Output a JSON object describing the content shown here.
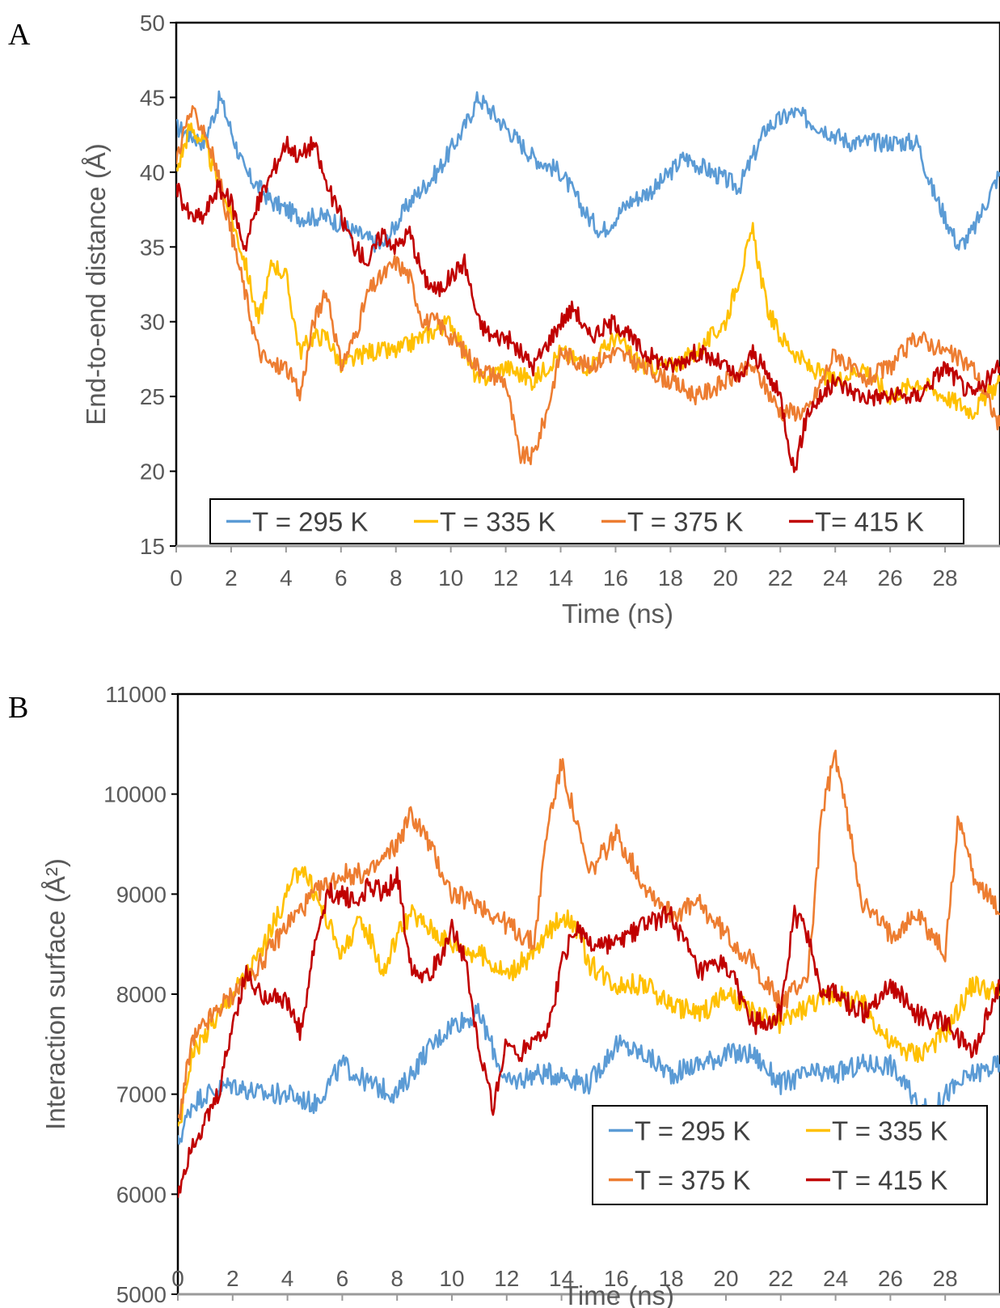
{
  "chart_data": [
    {
      "panel_label": "A",
      "type": "line",
      "xlabel": "Time (ns)",
      "ylabel": "End-to-end distance (Å)",
      "xlim": [
        0,
        30
      ],
      "ylim": [
        15,
        50
      ],
      "x_ticks": [
        "0",
        "2",
        "4",
        "6",
        "8",
        "10",
        "12",
        "14",
        "16",
        "18",
        "20",
        "22",
        "24",
        "26",
        "28"
      ],
      "y_ticks": [
        "15",
        "20",
        "25",
        "30",
        "35",
        "40",
        "45",
        "50"
      ],
      "legend_position": "bottom",
      "series": [
        {
          "name": "T = 295 K",
          "color": "#5B9BD5",
          "x": [
            0,
            1,
            1.6,
            2.5,
            3.5,
            4.5,
            5.5,
            6.5,
            7.5,
            8.5,
            9.5,
            10.5,
            11,
            12,
            13,
            14,
            15,
            15.5,
            16.5,
            17.5,
            18.5,
            19.5,
            20.5,
            21.5,
            22.5,
            23.5,
            24.5,
            25.5,
            26.5,
            27,
            27.5,
            28,
            28.5,
            29,
            29.5,
            30
          ],
          "y": [
            43,
            42,
            45,
            40,
            38,
            37,
            37,
            36,
            35,
            38,
            40,
            43,
            45,
            43,
            41,
            40,
            37,
            36,
            38,
            39,
            41,
            40,
            39,
            43,
            44,
            43,
            42,
            42,
            42,
            42,
            39,
            37,
            35,
            36,
            38,
            40
          ]
        },
        {
          "name": "T = 335 K",
          "color": "#FFC000",
          "x": [
            0,
            0.5,
            1,
            2,
            2.5,
            3,
            3.5,
            4,
            4.5,
            5,
            5.5,
            6,
            7,
            8,
            9,
            10,
            11,
            12,
            13,
            14,
            15,
            16,
            17,
            18,
            19,
            20,
            20.5,
            21,
            21.5,
            22,
            23,
            24,
            25,
            26,
            27,
            28,
            29,
            30
          ],
          "y": [
            40,
            43,
            42,
            37,
            34,
            30,
            34,
            33,
            28,
            29,
            29,
            27,
            28,
            28,
            29,
            30,
            26,
            27,
            26,
            28,
            27,
            29,
            27,
            27,
            28,
            30,
            33,
            36,
            31,
            29,
            27,
            26,
            27,
            25,
            26,
            25,
            24,
            26
          ]
        },
        {
          "name": "T = 375 K",
          "color": "#ED7D31",
          "x": [
            0,
            0.5,
            1,
            1.5,
            2,
            2.5,
            3,
            3.5,
            4,
            4.5,
            5,
            5.5,
            6,
            6.5,
            7,
            7.5,
            8,
            8.5,
            9,
            9.5,
            10,
            11,
            12,
            12.5,
            13,
            13.5,
            14,
            15,
            16,
            17,
            18,
            19,
            20,
            21,
            22,
            23,
            24,
            25,
            26,
            27,
            28,
            29,
            30
          ],
          "y": [
            41,
            44,
            43,
            40,
            36,
            32,
            28,
            27,
            27,
            25,
            30,
            32,
            27,
            29,
            32,
            33,
            34,
            33,
            30,
            30,
            29,
            27,
            26,
            21,
            21,
            24,
            28,
            27,
            28,
            27,
            26,
            25,
            26,
            27,
            24,
            24,
            28,
            26,
            27,
            29,
            28,
            27,
            23
          ]
        },
        {
          "name": "T= 415 K",
          "color": "#C00000",
          "x": [
            0,
            0.5,
            1,
            1.5,
            2,
            2.5,
            3,
            3.5,
            4,
            4.5,
            5,
            5.5,
            6,
            6.5,
            7,
            7.5,
            8,
            8.5,
            9,
            9.5,
            10,
            10.5,
            11,
            11.5,
            12,
            13,
            14,
            14.5,
            15,
            16,
            17,
            18,
            19,
            20,
            20.5,
            21,
            22,
            22.5,
            23,
            24,
            25,
            26,
            27,
            28,
            29,
            30
          ],
          "y": [
            39,
            37,
            37,
            39,
            38,
            35,
            38,
            40,
            42,
            41,
            42,
            39,
            37,
            35,
            34,
            36,
            35,
            36,
            33,
            32,
            33,
            34,
            30,
            29,
            29,
            27,
            30,
            31,
            29,
            30,
            28,
            27,
            28,
            27,
            26,
            28,
            25,
            20,
            24,
            26,
            25,
            25,
            25,
            27,
            25,
            27
          ]
        }
      ]
    },
    {
      "panel_label": "B",
      "type": "line",
      "xlabel": "Time (ns)",
      "ylabel": "Interaction surface (Å²)",
      "xlim": [
        0,
        30
      ],
      "ylim": [
        5000,
        11000
      ],
      "x_ticks": [
        "0",
        "2",
        "4",
        "6",
        "8",
        "10",
        "12",
        "14",
        "16",
        "18",
        "20",
        "22",
        "24",
        "26",
        "28"
      ],
      "y_ticks": [
        "5000",
        "6000",
        "7000",
        "8000",
        "9000",
        "10000",
        "11000"
      ],
      "legend_position": "bottom-right",
      "series": [
        {
          "name": "T = 295 K",
          "color": "#5B9BD5",
          "x": [
            0,
            0.5,
            1,
            2,
            3,
            4,
            5,
            6,
            7,
            8,
            9,
            10,
            11,
            12,
            13,
            14,
            15,
            16,
            17,
            18,
            19,
            20,
            21,
            22,
            23,
            24,
            25,
            26,
            27,
            27.5,
            28,
            29,
            30
          ],
          "y": [
            6500,
            6900,
            7000,
            7100,
            7000,
            7000,
            6900,
            7300,
            7100,
            7000,
            7400,
            7700,
            7800,
            7100,
            7200,
            7200,
            7100,
            7500,
            7400,
            7200,
            7300,
            7400,
            7400,
            7100,
            7200,
            7200,
            7300,
            7300,
            6900,
            6800,
            7000,
            7200,
            7300
          ]
        },
        {
          "name": "T = 335 K",
          "color": "#FFC000",
          "x": [
            0,
            0.5,
            1,
            2,
            3,
            4,
            4.5,
            5,
            5.5,
            6,
            6.5,
            7,
            7.5,
            8,
            8.5,
            9,
            10,
            11,
            12,
            13,
            14,
            14.5,
            15,
            16,
            17,
            18,
            19,
            20,
            21,
            22,
            23,
            24,
            25,
            26,
            27,
            28,
            29,
            30
          ],
          "y": [
            6600,
            7400,
            7600,
            8000,
            8400,
            9000,
            9300,
            9000,
            8700,
            8400,
            8700,
            8600,
            8200,
            8600,
            8800,
            8700,
            8500,
            8400,
            8200,
            8400,
            8800,
            8700,
            8300,
            8100,
            8100,
            7900,
            7800,
            8000,
            7800,
            7700,
            7900,
            8000,
            7900,
            7500,
            7400,
            7600,
            8100,
            8000
          ]
        },
        {
          "name": "T = 375 K",
          "color": "#ED7D31",
          "x": [
            0,
            0.5,
            1,
            2,
            3,
            4,
            5,
            6,
            7,
            8,
            8.5,
            9,
            10,
            11,
            12,
            13,
            13.5,
            14,
            15,
            16,
            17,
            18,
            19,
            20,
            21,
            22,
            23,
            23.5,
            24,
            25,
            26,
            27,
            28,
            28.5,
            29,
            30
          ],
          "y": [
            6700,
            7500,
            7700,
            8000,
            8300,
            8700,
            9000,
            9200,
            9200,
            9500,
            9800,
            9600,
            9000,
            8900,
            8700,
            8500,
            9700,
            10300,
            9200,
            9600,
            9100,
            8800,
            8900,
            8600,
            8300,
            7900,
            8200,
            9800,
            10400,
            8900,
            8600,
            8800,
            8400,
            9800,
            9200,
            8800
          ]
        },
        {
          "name": "T = 415 K",
          "color": "#C00000",
          "x": [
            0,
            0.5,
            1,
            1.5,
            2,
            2.5,
            3,
            3.5,
            4,
            4.5,
            5,
            5.5,
            6,
            6.5,
            7,
            7.5,
            8,
            8.5,
            9,
            9.5,
            10,
            10.5,
            11,
            11.5,
            12,
            12.5,
            13,
            13.5,
            14,
            14.5,
            15,
            16,
            17,
            18,
            19,
            20,
            21,
            22,
            22.5,
            23,
            23.5,
            24,
            25,
            26,
            27,
            28,
            29,
            30
          ],
          "y": [
            6000,
            6500,
            6700,
            7000,
            7700,
            8200,
            8000,
            8000,
            7900,
            7600,
            8500,
            9000,
            9000,
            8900,
            9100,
            9000,
            9200,
            8300,
            8200,
            8300,
            8700,
            8300,
            7400,
            6900,
            7500,
            7400,
            7600,
            7600,
            8300,
            8700,
            8500,
            8500,
            8700,
            8800,
            8200,
            8300,
            7700,
            7800,
            8800,
            8600,
            8000,
            8000,
            7800,
            8100,
            7800,
            7700,
            7400,
            8100
          ]
        }
      ]
    }
  ]
}
